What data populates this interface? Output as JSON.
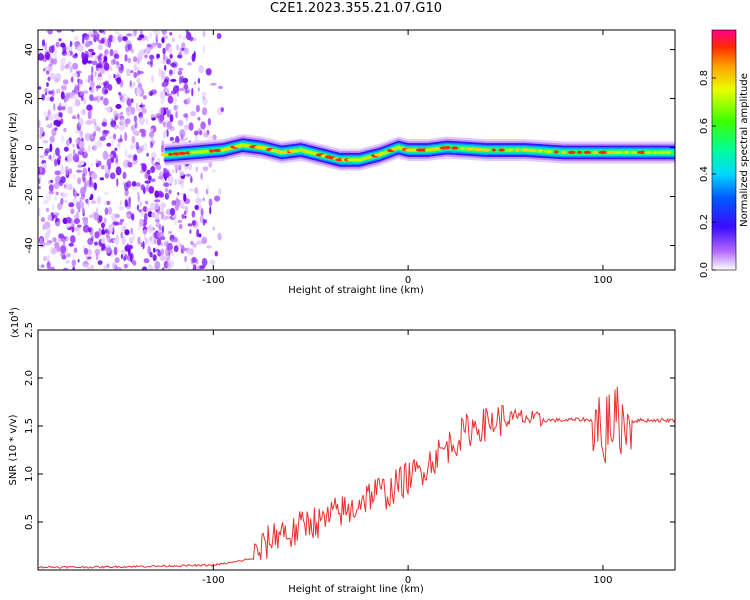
{
  "title": "C2E1.2023.355.21.07.G10",
  "chart_data": [
    {
      "type": "heatmap",
      "xlabel": "Height of straight line (km)",
      "ylabel": "Frequency (Hz)",
      "xlim": [
        -190,
        137
      ],
      "ylim": [
        -50,
        48
      ],
      "x_ticks": [
        -100,
        0,
        100
      ],
      "y_ticks": [
        -40,
        -20,
        0,
        20,
        40
      ],
      "colorbar": {
        "label": "Normalized spectral amplitude",
        "range": [
          0,
          1
        ],
        "ticks": [
          "0.0",
          "0.2",
          "0.4",
          "0.6",
          "0.8"
        ]
      },
      "ridge": {
        "x": [
          -125,
          -110,
          -95,
          -85,
          -75,
          -65,
          -55,
          -45,
          -35,
          -25,
          -15,
          -5,
          0,
          10,
          20,
          40,
          60,
          80,
          100,
          120,
          137
        ],
        "y": [
          -3,
          -2,
          -1,
          1,
          0,
          -2,
          -1,
          -3,
          -5,
          -5,
          -3,
          0,
          -1,
          -1,
          0,
          -1,
          -1,
          -2,
          -2,
          -2,
          -2
        ]
      },
      "noise_region_x": [
        -190,
        -95
      ]
    },
    {
      "type": "line",
      "xlabel": "Height of straight line (km)",
      "ylabel": "SNR (10 * v/v)",
      "y_multiplier": "(x10",
      "y_multiplier_exp": "4",
      "y_multiplier_close": ")",
      "xlim": [
        -190,
        137
      ],
      "ylim": [
        0,
        2.5
      ],
      "x_ticks": [
        -100,
        0,
        100
      ],
      "y_ticks": [
        "0.5",
        "1.0",
        "1.5",
        "2.0",
        "2.5"
      ],
      "color": "#e8312f",
      "series": [
        {
          "x": [
            -190,
            -160,
            -130,
            -100,
            -90,
            -80,
            -75,
            -70,
            -65,
            -60,
            -55,
            -50,
            -45,
            -40,
            -35,
            -30,
            -25,
            -20,
            -15,
            -10,
            -5,
            0,
            5,
            10,
            15,
            20,
            25,
            30,
            35,
            40,
            45,
            50,
            55,
            60,
            65,
            70,
            80,
            90,
            95,
            98,
            100,
            102,
            105,
            108,
            110,
            112,
            115,
            120,
            130,
            137
          ],
          "y": [
            0.03,
            0.03,
            0.04,
            0.05,
            0.08,
            0.12,
            0.22,
            0.33,
            0.42,
            0.36,
            0.45,
            0.52,
            0.48,
            0.55,
            0.62,
            0.6,
            0.72,
            0.78,
            0.82,
            0.8,
            0.9,
            0.96,
            1.02,
            1.1,
            1.2,
            1.28,
            1.36,
            1.45,
            1.5,
            1.52,
            1.56,
            1.57,
            1.58,
            1.59,
            1.55,
            1.56,
            1.56,
            1.57,
            1.55,
            1.62,
            1.1,
            1.55,
            1.56,
            1.58,
            1.52,
            1.55,
            1.55,
            1.56,
            1.56,
            1.56
          ]
        }
      ]
    }
  ]
}
